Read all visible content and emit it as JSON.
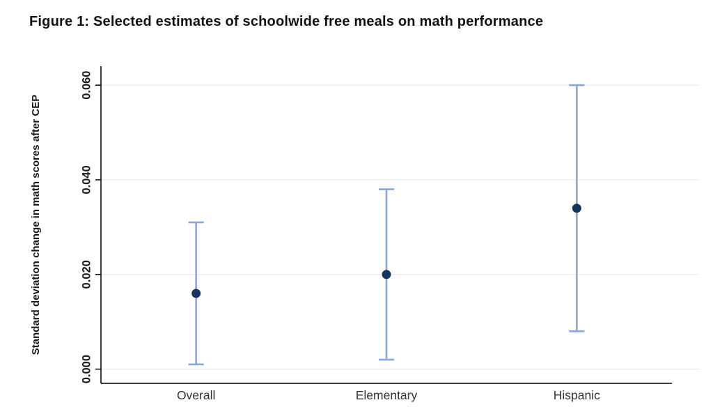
{
  "chart_data": {
    "type": "scatter",
    "subtype": "point-estimates-with-confidence-intervals",
    "title": "Figure 1: Selected estimates of schoolwide free meals on math performance",
    "ylabel": "Standard deviation change in math scores after CEP",
    "xlabel": "",
    "categories": [
      "Overall",
      "Elementary",
      "Hispanic"
    ],
    "series": [
      {
        "name": "Point estimate",
        "values": [
          0.016,
          0.02,
          0.034
        ]
      },
      {
        "name": "CI lower",
        "values": [
          0.001,
          0.002,
          0.008
        ]
      },
      {
        "name": "CI upper",
        "values": [
          0.031,
          0.038,
          0.06
        ]
      }
    ],
    "ytick_values": [
      0.0,
      0.02,
      0.04,
      0.06
    ],
    "ytick_labels": [
      "0.000",
      "0.020",
      "0.040",
      "0.060"
    ],
    "ylim": [
      -0.003,
      0.064
    ],
    "grid": "horizontal",
    "legend": "none",
    "colors": {
      "point": "#16355e",
      "ci_line": "#8ba6d9",
      "grid": "#e6e6e6",
      "axis": "#000000",
      "tick_label": "#1a1a1a",
      "category_label": "#333333",
      "ylabel_color": "#1a1a1a"
    }
  }
}
